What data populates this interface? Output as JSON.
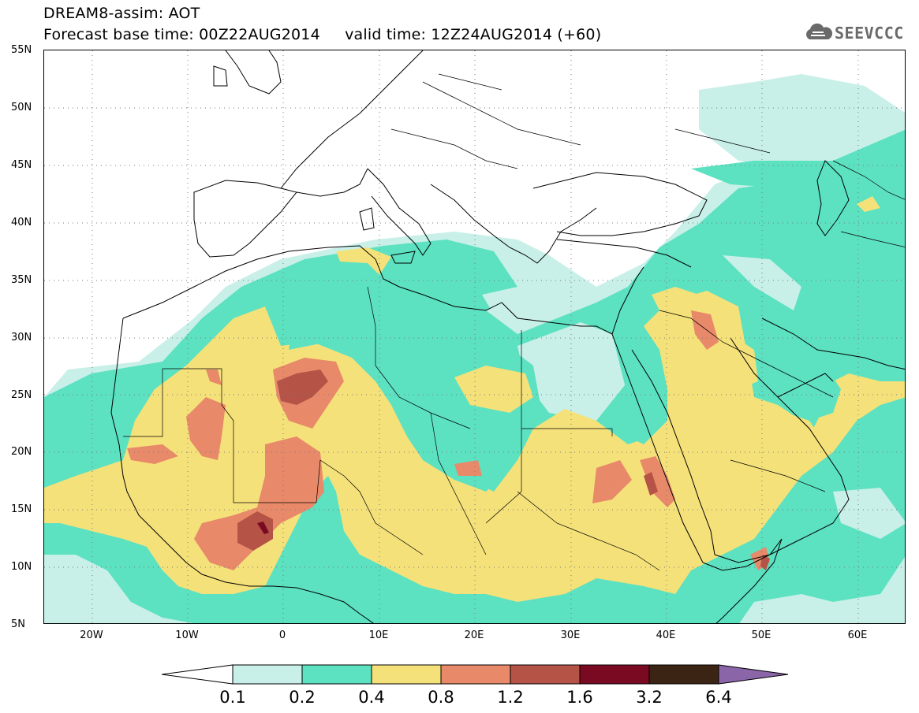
{
  "title": {
    "line1": "DREAM8-assim: AOT",
    "line2": "Forecast base time: 00Z22AUG2014     valid time: 12Z24AUG2014 (+60)"
  },
  "logo": {
    "text": "SEEVCCC",
    "icon": "cloud-icon",
    "color": "#6a6a6a"
  },
  "map": {
    "projection": "cylindrical-equidistant",
    "lon_range": [
      -25,
      65
    ],
    "lat_range": [
      5,
      55
    ],
    "lat_labels": [
      "55N",
      "50N",
      "45N",
      "40N",
      "35N",
      "30N",
      "25N",
      "20N",
      "15N",
      "10N",
      "5N"
    ],
    "lon_labels": [
      "20W",
      "10W",
      "0",
      "10E",
      "20E",
      "30E",
      "40E",
      "50E",
      "60E"
    ],
    "field": "Aerosol Optical Thickness (dust)",
    "grid": "dotted"
  },
  "colorbar": {
    "levels": [
      "0.1",
      "0.2",
      "0.4",
      "0.8",
      "1.2",
      "1.6",
      "3.2",
      "6.4"
    ],
    "colors": [
      "#ffffff",
      "#c8f0e8",
      "#5ce1c1",
      "#f5e17a",
      "#e8896a",
      "#b55346",
      "#7a0a22",
      "#3b2414",
      "#8a66a8"
    ]
  }
}
